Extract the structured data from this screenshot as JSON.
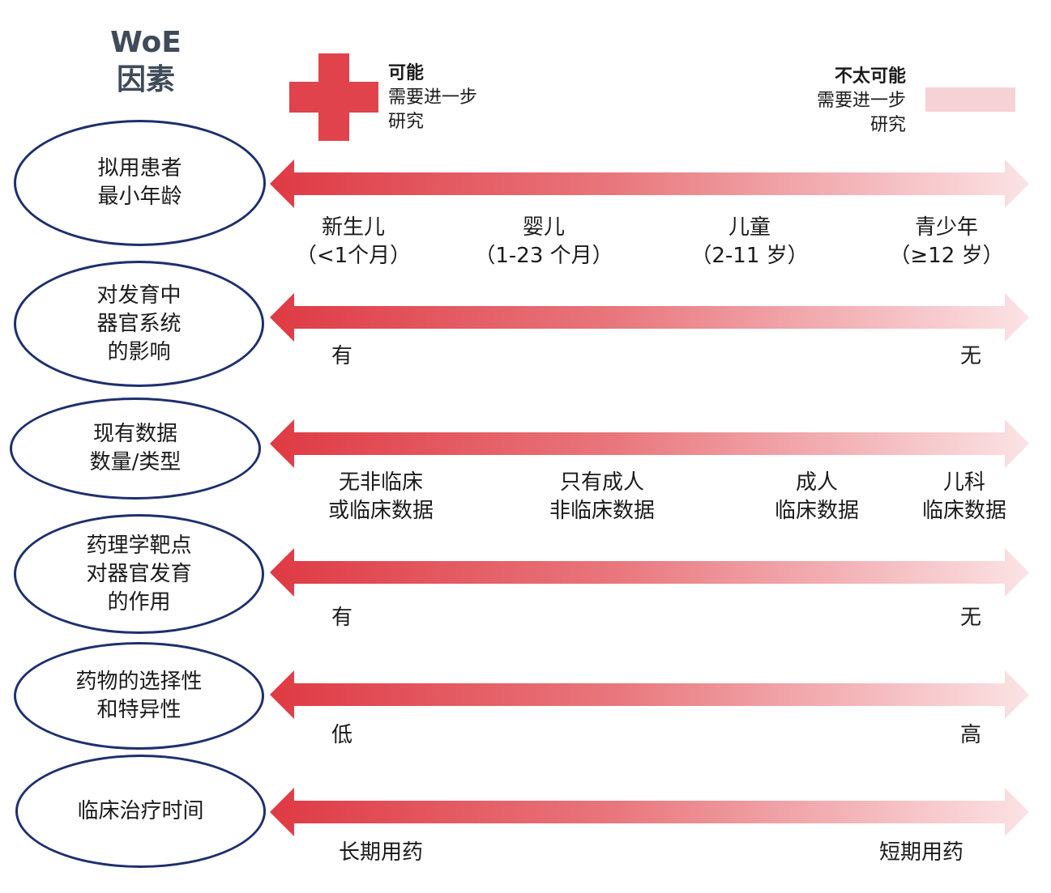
{
  "header": {
    "title_line1": "WoE",
    "title_line2": "因素",
    "likely_title": "可能",
    "likely_line1": "需要进一步",
    "likely_line2": "研究",
    "unlikely_title": "不太可能",
    "unlikely_line1": "需要进一步",
    "unlikely_line2": "研究"
  },
  "colors": {
    "accent_red": "#e0434b",
    "light_pink": "#f6d2d6",
    "ellipse_border": "#1d2f6e",
    "title_gray": "#3f4b59"
  },
  "rows": [
    {
      "factor_line1": "拟用患者",
      "factor_line2": "最小年龄",
      "factor_line3": "",
      "labels": [
        {
          "line1": "新生儿",
          "line2": "（<1个月）"
        },
        {
          "line1": "婴儿",
          "line2": "（1-23 个月）"
        },
        {
          "line1": "儿童",
          "line2": "（2-11 岁）"
        },
        {
          "line1": "青少年",
          "line2": "（≥12 岁）"
        }
      ]
    },
    {
      "factor_line1": "对发育中",
      "factor_line2": "器官系统",
      "factor_line3": "的影响",
      "labels": [
        {
          "line1": "有"
        },
        {
          "line1": "无"
        }
      ]
    },
    {
      "factor_line1": "现有数据",
      "factor_line2": "数量/类型",
      "factor_line3": "",
      "labels": [
        {
          "line1": "无非临床",
          "line2": "或临床数据"
        },
        {
          "line1": "只有成人",
          "line2": "非临床数据"
        },
        {
          "line1": "成人",
          "line2": "临床数据"
        },
        {
          "line1": "儿科",
          "line2": "临床数据"
        }
      ]
    },
    {
      "factor_line1": "药理学靶点",
      "factor_line2": "对器官发育",
      "factor_line3": "的作用",
      "labels": [
        {
          "line1": "有"
        },
        {
          "line1": "无"
        }
      ]
    },
    {
      "factor_line1": "药物的选择性",
      "factor_line2": "和特异性",
      "factor_line3": "",
      "labels": [
        {
          "line1": "低"
        },
        {
          "line1": "高"
        }
      ]
    },
    {
      "factor_line1": "临床治疗时间",
      "factor_line2": "",
      "factor_line3": "",
      "labels": [
        {
          "line1": "长期用药"
        },
        {
          "line1": "短期用药"
        }
      ]
    }
  ]
}
